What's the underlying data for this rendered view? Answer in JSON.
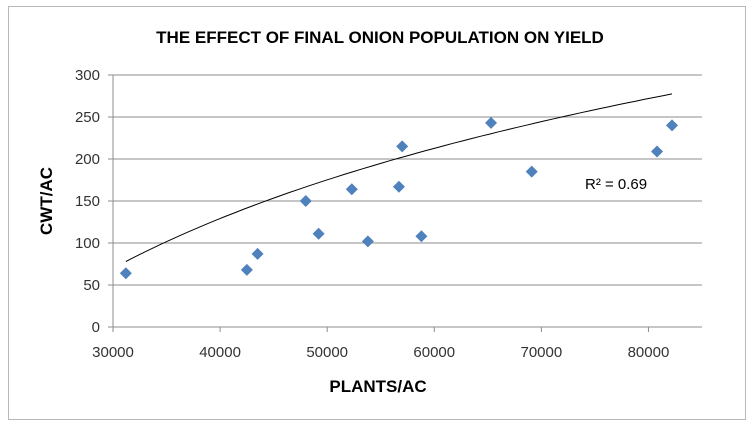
{
  "chart_data": {
    "type": "scatter",
    "title": "THE EFFECT OF FINAL ONION POPULATION ON YIELD",
    "xlabel": "PLANTS/AC",
    "ylabel": "CWT/AC",
    "xlim": [
      30000,
      85000
    ],
    "ylim": [
      0,
      300
    ],
    "xticks": [
      30000,
      40000,
      50000,
      60000,
      70000,
      80000
    ],
    "yticks": [
      0,
      50,
      100,
      150,
      200,
      250,
      300
    ],
    "xtick_labels": [
      "30000",
      "40000",
      "50000",
      "60000",
      "70000",
      "80000"
    ],
    "ytick_labels": [
      "0",
      "50",
      "100",
      "150",
      "200",
      "250",
      "300"
    ],
    "grid": "horizontal",
    "legend": "none",
    "marker": "diamond",
    "marker_color": "#4f81bd",
    "trendline_color": "#000000",
    "series": [
      {
        "x": [
          31200,
          42500,
          43500,
          48000,
          49200,
          52300,
          53800,
          56700,
          57000,
          58800,
          65300,
          69100,
          80800,
          82200
        ],
        "y": [
          64,
          68,
          87,
          150,
          111,
          164,
          102,
          167,
          215,
          108,
          243,
          185,
          209,
          240
        ]
      }
    ],
    "trendline": {
      "type": "logarithmic",
      "a": -2053.85,
      "b": 206.01,
      "x_range": [
        31200,
        82200
      ]
    },
    "annotation": "R² = 0.69"
  }
}
